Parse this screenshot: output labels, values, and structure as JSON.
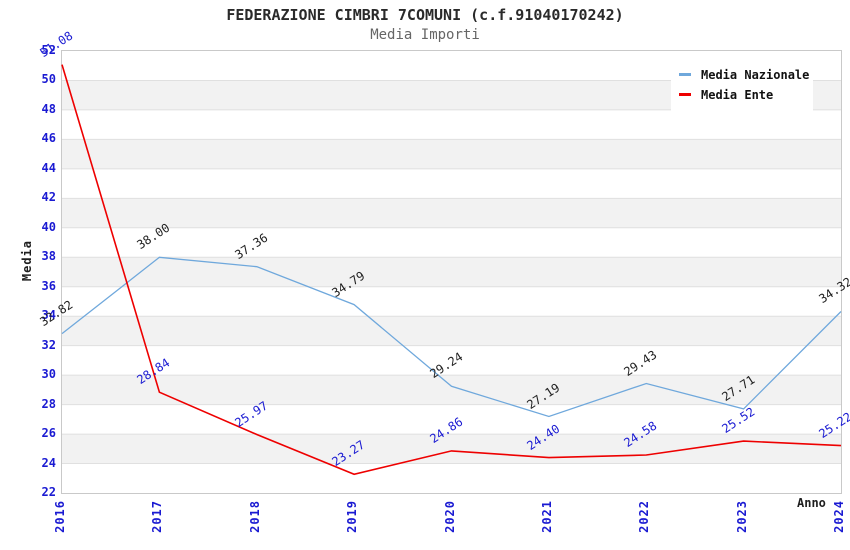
{
  "chart_data": {
    "type": "line",
    "title": "FEDERAZIONE CIMBRI 7COMUNI (c.f.91040170242)",
    "subtitle": "Media Importi",
    "xlabel": "Anno",
    "ylabel": "Media",
    "categories": [
      "2016",
      "2017",
      "2018",
      "2019",
      "2020",
      "2021",
      "2022",
      "2023",
      "2024"
    ],
    "series": [
      {
        "name": "Media Nazionale",
        "color": "#6fa8dc",
        "label_color": "#1f1f1f",
        "values": [
          32.82,
          38.0,
          37.36,
          34.79,
          29.24,
          27.19,
          29.43,
          27.71,
          34.32
        ]
      },
      {
        "name": "Media Ente",
        "color": "#ee0000",
        "label_color": "#1a1ad2",
        "values": [
          51.08,
          28.84,
          25.97,
          23.27,
          24.86,
          24.4,
          24.58,
          25.52,
          25.22
        ]
      }
    ],
    "ylim": [
      22,
      52
    ],
    "y_ticks": [
      52,
      50,
      48,
      46,
      44,
      42,
      40,
      38,
      36,
      34,
      32,
      30,
      28,
      26,
      24,
      22
    ],
    "grid": "horizontal-stripes",
    "legend_position": "top-right",
    "value_labels": "two-decimals",
    "tick_color": "#1a1ad2",
    "gridline_color": "#e0e0e0"
  }
}
